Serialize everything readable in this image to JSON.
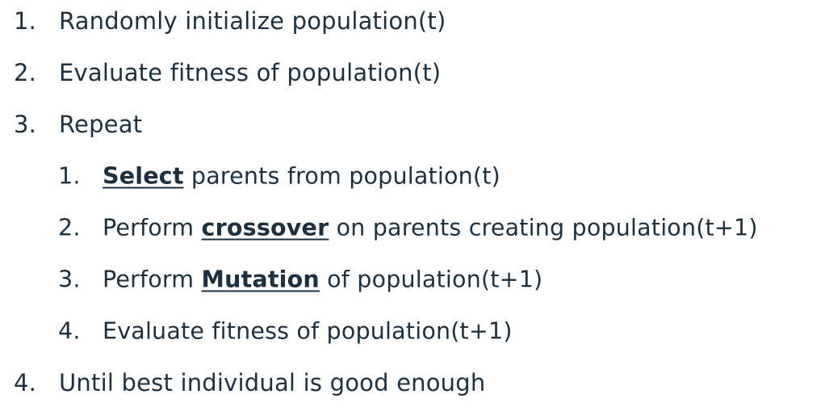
{
  "steps": [
    {
      "num": "1.",
      "text": "Randomly initialize population(t)"
    },
    {
      "num": "2.",
      "text": "Evaluate fitness of population(t)"
    },
    {
      "num": "3.",
      "text": "Repeat"
    },
    {
      "num": "4.",
      "text": "Until best individual is good enough"
    }
  ],
  "substeps": [
    {
      "num": "1.",
      "keyword": "Select",
      "after": " parents from population(t)"
    },
    {
      "num": "2.",
      "before": "Perform ",
      "keyword": "crossover",
      "after": " on parents creating population(t+1)"
    },
    {
      "num": "3.",
      "before": "Perform ",
      "keyword": "Mutation",
      "after": " of population(t+1)"
    },
    {
      "num": "4.",
      "text": "Evaluate fitness of population(t+1)"
    }
  ]
}
